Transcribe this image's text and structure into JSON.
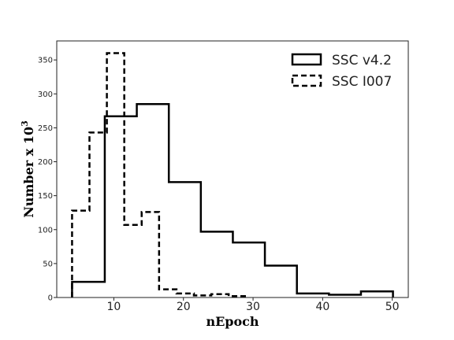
{
  "chart_data": {
    "type": "line",
    "subtype": "step-histogram",
    "xlabel": "nEpoch",
    "ylabel": "Number x 10",
    "ylabel_superscript": "3",
    "xlim": [
      1.8,
      52.3
    ],
    "ylim": [
      0,
      378
    ],
    "xticks": [
      10,
      20,
      30,
      40,
      50
    ],
    "yticks": [
      0,
      50,
      100,
      150,
      200,
      250,
      300,
      350
    ],
    "grid": false,
    "legend_position": "top-right",
    "series": [
      {
        "name": "SSC v4.2",
        "style": "solid",
        "color": "#000000",
        "edges": [
          4,
          8.7,
          13.3,
          17.9,
          22.5,
          27.1,
          31.7,
          36.3,
          40.9,
          45.5,
          50.1
        ],
        "values": [
          23,
          267,
          285,
          170,
          97,
          81,
          47,
          6,
          4,
          9
        ]
      },
      {
        "name": "SSC I007",
        "style": "dashed",
        "color": "#000000",
        "edges": [
          4,
          6.5,
          9,
          11.5,
          14,
          16.5,
          19,
          21.5,
          24,
          26.5,
          29
        ],
        "values": [
          128,
          243,
          360,
          107,
          126,
          12,
          6,
          3,
          5,
          2
        ]
      }
    ]
  }
}
